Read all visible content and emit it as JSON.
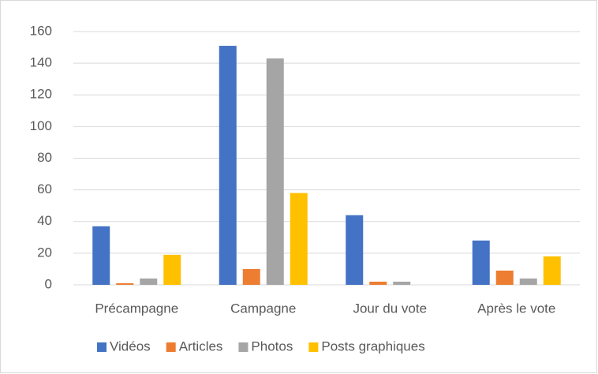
{
  "chart_data": {
    "type": "bar",
    "categories": [
      "Précampagne",
      "Campagne",
      "Jour du vote",
      "Après le vote"
    ],
    "series": [
      {
        "name": "Vidéos",
        "color": "#4472c4",
        "values": [
          37,
          151,
          44,
          28
        ]
      },
      {
        "name": "Articles",
        "color": "#ed7d31",
        "values": [
          1,
          10,
          2,
          9
        ]
      },
      {
        "name": "Photos",
        "color": "#a5a5a5",
        "values": [
          4,
          143,
          2,
          4
        ]
      },
      {
        "name": "Posts graphiques",
        "color": "#ffc000",
        "values": [
          19,
          58,
          0,
          18
        ]
      }
    ],
    "ylim": [
      0,
      160
    ],
    "yticks": [
      0,
      20,
      40,
      60,
      80,
      100,
      120,
      140,
      160
    ],
    "grid": true,
    "legend": "bottom"
  }
}
